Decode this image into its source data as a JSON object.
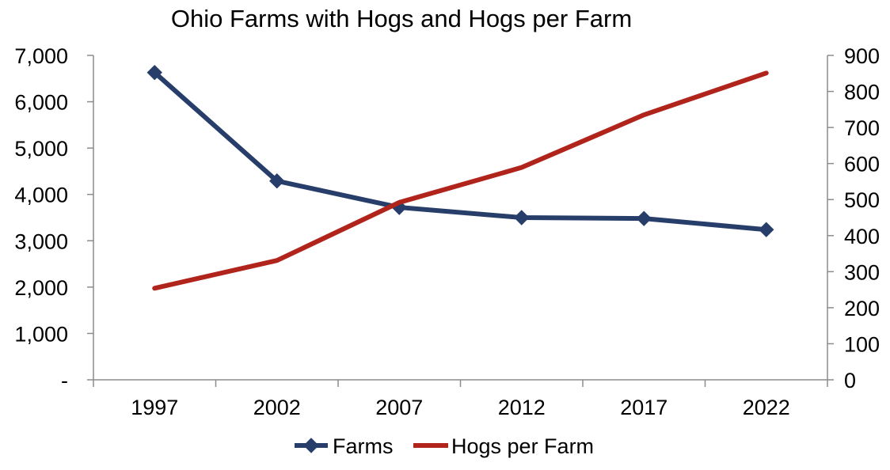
{
  "chart_data": {
    "type": "line",
    "title": "Ohio Farms with Hogs and Hogs per Farm",
    "categories": [
      "1997",
      "2002",
      "2007",
      "2012",
      "2017",
      "2022"
    ],
    "y_left": {
      "ylim": [
        0,
        7000
      ],
      "ticks": [
        0,
        1000,
        2000,
        3000,
        4000,
        5000,
        6000,
        7000
      ],
      "tick_labels": [
        "-",
        "1,000",
        "2,000",
        "3,000",
        "4,000",
        "5,000",
        "6,000",
        "7,000"
      ]
    },
    "y_right": {
      "ylim": [
        0,
        900
      ],
      "ticks": [
        0,
        100,
        200,
        300,
        400,
        500,
        600,
        700,
        800,
        900
      ],
      "tick_labels": [
        "0",
        "100",
        "200",
        "300",
        "400",
        "500",
        "600",
        "700",
        "800",
        "900"
      ]
    },
    "series": [
      {
        "name": "Farms",
        "axis": "left",
        "marker": "diamond",
        "color": "#283e6a",
        "values": [
          6630,
          4290,
          3720,
          3500,
          3480,
          3240
        ]
      },
      {
        "name": "Hogs per Farm",
        "axis": "right",
        "marker": "none",
        "color": "#b0241c",
        "values": [
          254,
          331,
          492,
          589,
          735,
          851
        ]
      }
    ],
    "legend_position": "bottom-center",
    "grid": false
  }
}
